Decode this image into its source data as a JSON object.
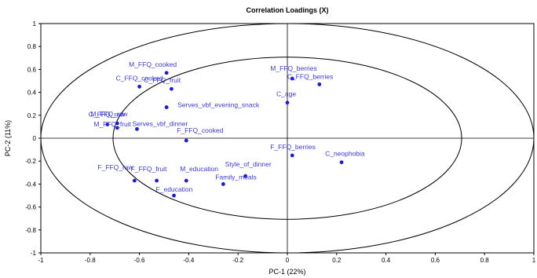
{
  "chart_data": {
    "type": "scatter",
    "title": "Correlation Loadings (X)",
    "xlabel": "PC-1 (22%)",
    "ylabel": "PC-2 (11%)",
    "xlim": [
      -1,
      1
    ],
    "ylim": [
      -1,
      1
    ],
    "x_ticks": [
      "-1",
      "-0.8",
      "-0.6",
      "-0.4",
      "-0.2",
      "0",
      "0.2",
      "0.4",
      "0.6",
      "0.8",
      "1"
    ],
    "y_ticks": [
      "1",
      "0.8",
      "0.6",
      "0.4",
      "0.2",
      "0",
      "-0.2",
      "-0.4",
      "-0.6",
      "-0.8",
      "-1"
    ],
    "circles": [
      1.0,
      0.7071
    ],
    "reference_lines": [
      0,
      0
    ],
    "grid": false,
    "colors": {
      "points": "#1a1ad8",
      "labels": "#3a3adf",
      "axes": "#000000",
      "circles": "#000000"
    },
    "points": [
      {
        "label": "M_FFQ_cooked",
        "x": -0.49,
        "y": 0.57
      },
      {
        "label": "C_FFQ_cooked",
        "x": -0.6,
        "y": 0.45
      },
      {
        "label": "C_FFQ_fruit",
        "x": -0.47,
        "y": 0.43
      },
      {
        "label": "Serves_vbf_evening_snack",
        "x": -0.49,
        "y": 0.27
      },
      {
        "label": "C_FFQ_raw",
        "x": -0.73,
        "y": 0.12
      },
      {
        "label": "M_FFQ_raw",
        "x": -0.69,
        "y": 0.13
      },
      {
        "label": "M_FFQ_fruit",
        "x": -0.69,
        "y": 0.09
      },
      {
        "label": "Serves_vbf_dinner",
        "x": -0.61,
        "y": 0.08
      },
      {
        "label": "F_FFQ_cooked",
        "x": -0.41,
        "y": -0.02
      },
      {
        "label": "M_FFQ_berries",
        "x": 0.02,
        "y": 0.52
      },
      {
        "label": "C_FFQ_berries",
        "x": 0.13,
        "y": 0.47
      },
      {
        "label": "C_age",
        "x": 0.0,
        "y": 0.31
      },
      {
        "label": "F_FFQ_berries",
        "x": 0.02,
        "y": -0.15
      },
      {
        "label": "C_neophobia",
        "x": 0.22,
        "y": -0.21
      },
      {
        "label": "F_FFQ_fruit",
        "x": -0.53,
        "y": -0.37
      },
      {
        "label": "M_education",
        "x": -0.41,
        "y": -0.37
      },
      {
        "label": "Style_of_dinner",
        "x": -0.17,
        "y": -0.33
      },
      {
        "label": "Family_meals",
        "x": -0.26,
        "y": -0.4
      },
      {
        "label": "F_FFQ_raw",
        "x": -0.62,
        "y": -0.37
      },
      {
        "label": "F_education",
        "x": -0.46,
        "y": -0.5
      }
    ]
  }
}
